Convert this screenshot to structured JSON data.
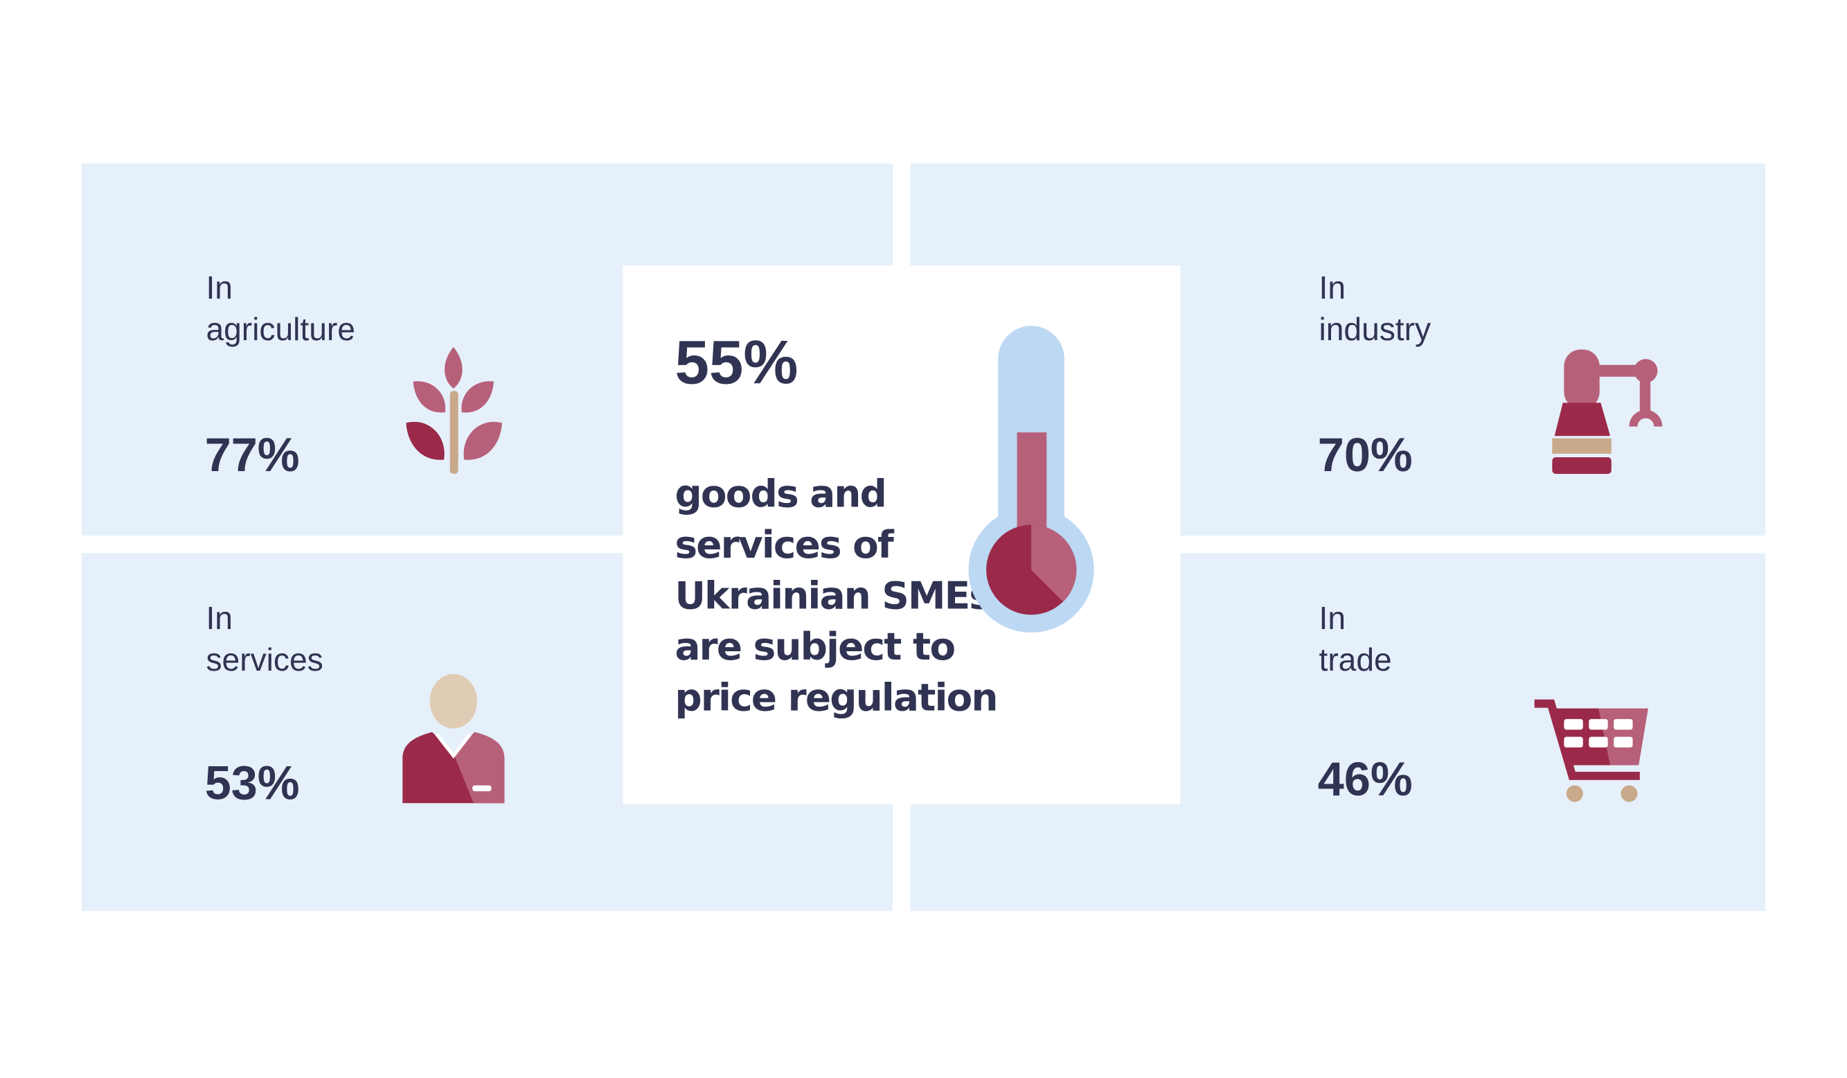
{
  "sectors": [
    {
      "label": [
        "In",
        "agriculture"
      ],
      "value": "77%"
    },
    {
      "label": [
        "In",
        "industry"
      ],
      "value": "70%"
    },
    {
      "label": [
        "In",
        "services"
      ],
      "value": "53%"
    },
    {
      "label": [
        "In",
        "trade"
      ],
      "value": "46%"
    }
  ],
  "center": {
    "value": "55%",
    "text": [
      "goods and",
      "services of",
      "Ukrainian SMEs",
      "are subject to",
      "price regulation"
    ]
  }
}
